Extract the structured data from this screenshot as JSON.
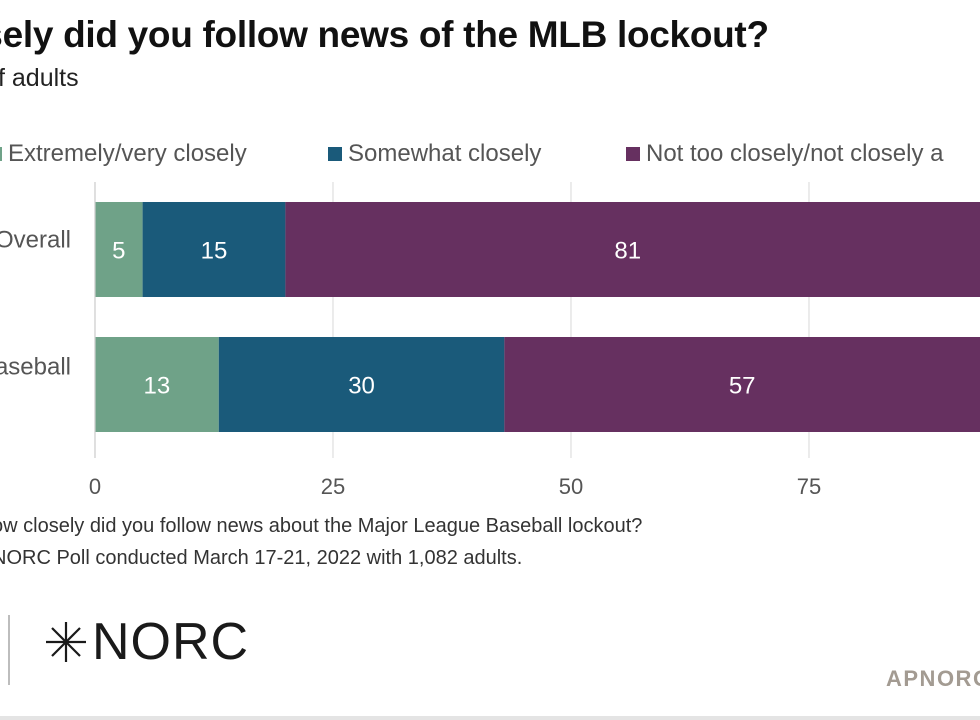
{
  "title": "osely did you follow news of the MLB lockout?",
  "subtitle": "f adults",
  "legend": [
    {
      "label": "Extremely/very closely",
      "color": "#6fa288"
    },
    {
      "label": "Somewhat closely",
      "color": "#1a5a7a"
    },
    {
      "label": "Not too closely/not closely a",
      "color": "#663060"
    }
  ],
  "chart_data": {
    "type": "bar",
    "orientation": "horizontal",
    "stacked": true,
    "categories": [
      "Overall",
      "aseball"
    ],
    "series": [
      {
        "name": "Extremely/very closely",
        "values": [
          5,
          13
        ],
        "color": "#6fa288"
      },
      {
        "name": "Somewhat closely",
        "values": [
          15,
          30
        ],
        "color": "#1a5a7a"
      },
      {
        "name": "Not too closely/not closely a",
        "values": [
          81,
          57
        ],
        "color": "#663060"
      }
    ],
    "xticks": [
      0,
      25,
      50,
      75
    ],
    "xlim": [
      0,
      100
    ],
    "grid": true,
    "legend_position": "top"
  },
  "notes": {
    "question": "ow closely did you follow news about the Major League Baseball lockout?",
    "source": "NORC Poll conducted March 17-21, 2022 with 1,082 adults."
  },
  "logo_text": "NORC",
  "brand_text": "APNORC"
}
